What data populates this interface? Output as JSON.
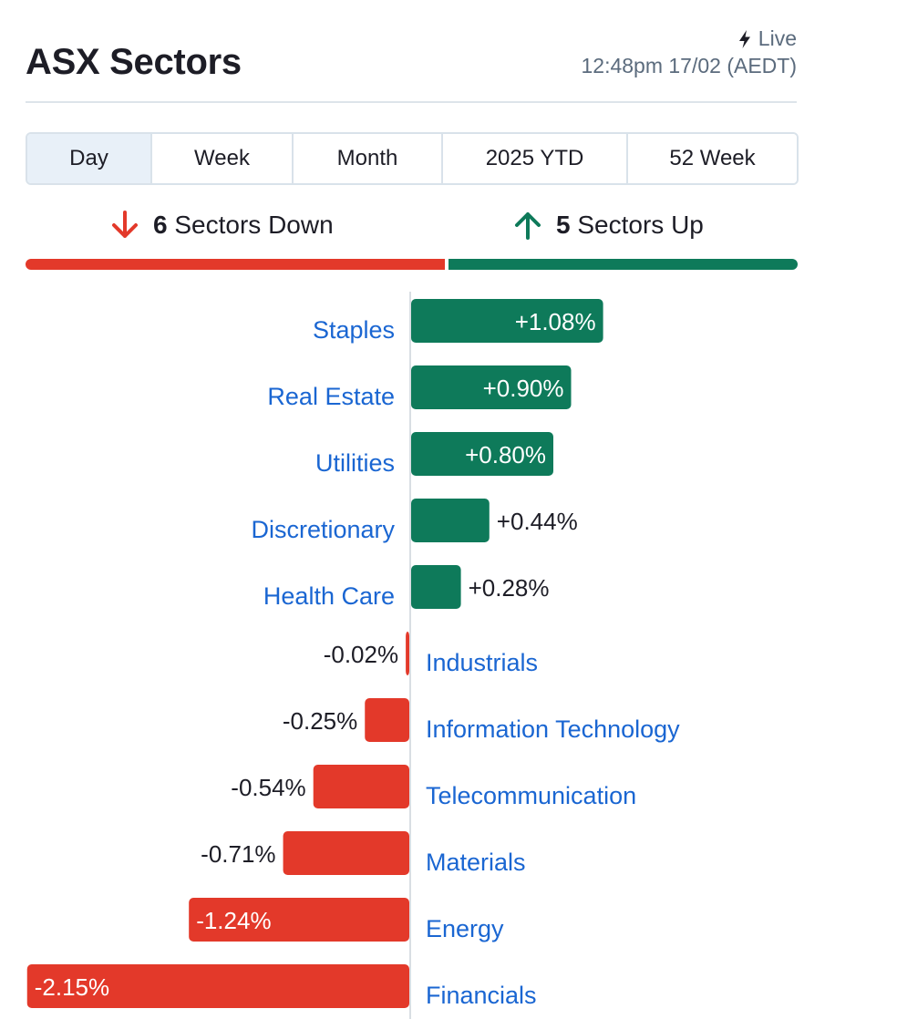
{
  "header": {
    "title": "ASX Sectors",
    "live_label": "Live",
    "timestamp": "12:48pm 17/02 (AEDT)"
  },
  "tabs": [
    {
      "label": "Day",
      "active": true
    },
    {
      "label": "Week",
      "active": false
    },
    {
      "label": "Month",
      "active": false
    },
    {
      "label": "2025 YTD",
      "active": false
    },
    {
      "label": "52 Week",
      "active": false
    }
  ],
  "summary": {
    "down_count": "6",
    "down_label": "Sectors Down",
    "up_count": "5",
    "up_label": "Sectors Up"
  },
  "colors": {
    "up": "#0e7a5a",
    "down": "#e3392a",
    "link": "#1a66d2",
    "text": "#1d1d26"
  },
  "chart_data": {
    "type": "bar",
    "orientation": "horizontal",
    "unit": "%",
    "categories": [
      "Staples",
      "Real Estate",
      "Utilities",
      "Discretionary",
      "Health Care",
      "Industrials",
      "Information Technology",
      "Telecommunication",
      "Materials",
      "Energy",
      "Financials"
    ],
    "values": [
      1.08,
      0.9,
      0.8,
      0.44,
      0.28,
      -0.02,
      -0.25,
      -0.54,
      -0.71,
      -1.24,
      -2.15
    ],
    "value_labels": [
      "+1.08%",
      "+0.90%",
      "+0.80%",
      "+0.44%",
      "+0.28%",
      "-0.02%",
      "-0.25%",
      "-0.54%",
      "-0.71%",
      "-1.24%",
      "-2.15%"
    ]
  }
}
